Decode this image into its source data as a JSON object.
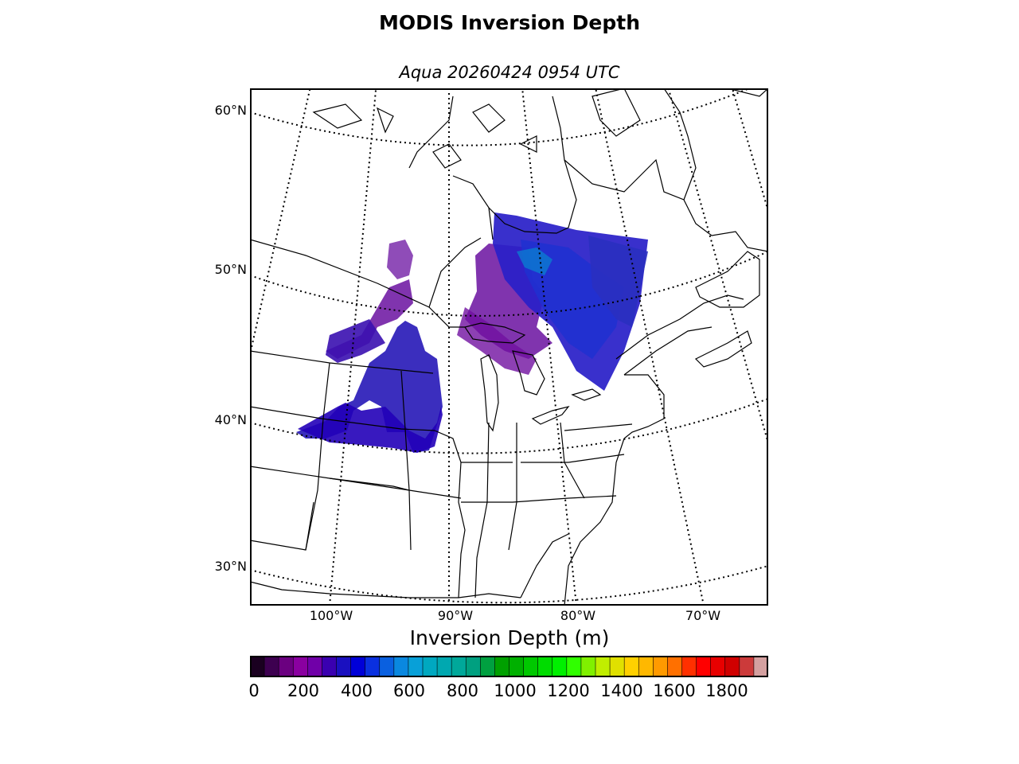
{
  "title": "MODIS Inversion Depth",
  "subtitle": "Aqua 20260424 0954 UTC",
  "lat_labels": [
    "60°N",
    "50°N",
    "40°N",
    "30°N"
  ],
  "lon_labels": [
    "100°W",
    "90°W",
    "80°W",
    "70°W"
  ],
  "colorbar": {
    "label": "Inversion Depth (m)",
    "ticks": [
      "0",
      "200",
      "400",
      "600",
      "800",
      "1000",
      "1200",
      "1400",
      "1600",
      "1800"
    ],
    "colors": [
      "#1a0020",
      "#3d0050",
      "#6b0080",
      "#8a00a0",
      "#7000a8",
      "#3a00b0",
      "#1a10c0",
      "#0000d8",
      "#0a30e0",
      "#0a60e0",
      "#0a88e0",
      "#08a0d8",
      "#00a8c0",
      "#00a8b0",
      "#00a89a",
      "#00a080",
      "#00a040",
      "#00a000",
      "#00b000",
      "#00c800",
      "#00dc00",
      "#00f000",
      "#30ff00",
      "#80f000",
      "#c0ee00",
      "#e0e000",
      "#ffd000",
      "#ffb800",
      "#ff9a00",
      "#ff7000",
      "#ff3000",
      "#ff0000",
      "#e80000",
      "#d00000",
      "#cc3a3a",
      "#d4a0a0"
    ]
  }
}
